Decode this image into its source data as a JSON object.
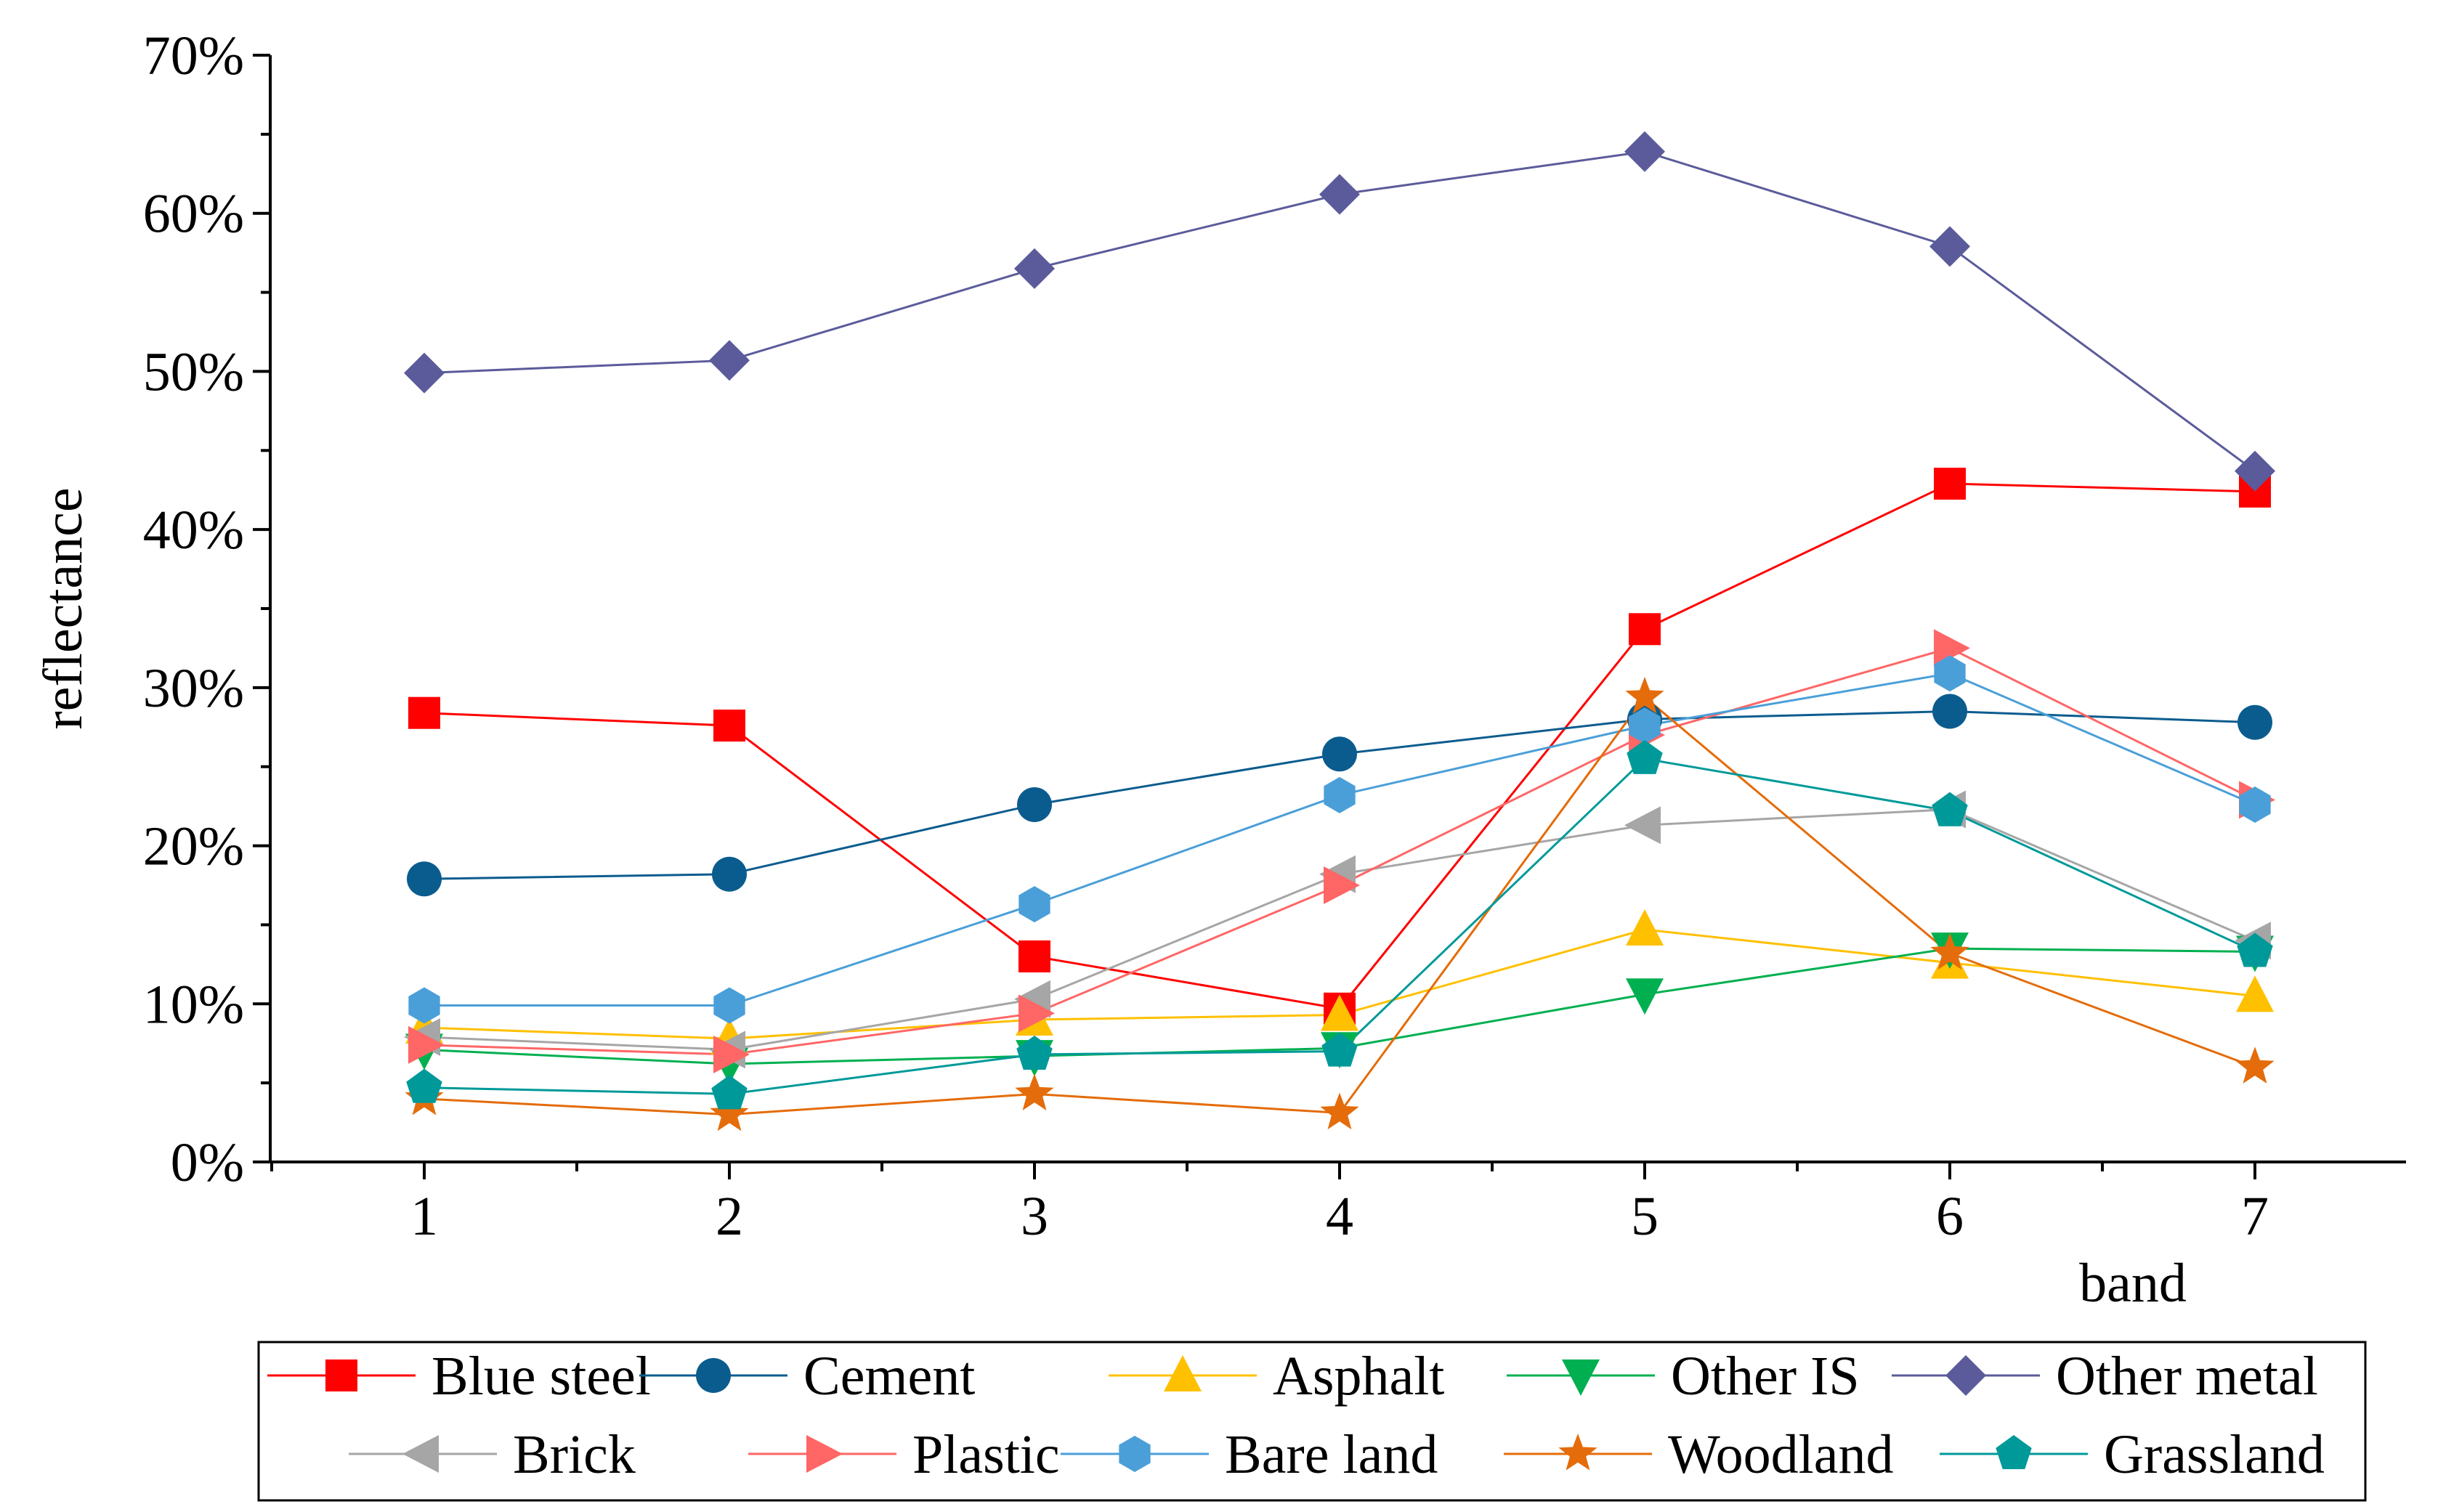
{
  "chart_data": {
    "type": "line",
    "title": "",
    "xlabel": "band",
    "ylabel": "reflectance",
    "x": [
      1,
      2,
      3,
      4,
      5,
      6,
      7
    ],
    "xlim": [
      0.5,
      7.5
    ],
    "ylim": [
      0,
      70
    ],
    "y_ticks": [
      0,
      10,
      20,
      30,
      40,
      50,
      60,
      70
    ],
    "y_tick_labels": [
      "0%",
      "10%",
      "20%",
      "30%",
      "40%",
      "50%",
      "60%",
      "70%"
    ],
    "x_tick_labels": [
      "1",
      "2",
      "3",
      "4",
      "5",
      "6",
      "7"
    ],
    "grid": false,
    "legend_position": "bottom",
    "series": [
      {
        "name": "Blue steel",
        "color": "#ff0000",
        "marker": "square",
        "values": [
          28.4,
          27.6,
          13.0,
          9.7,
          33.7,
          42.9,
          42.4
        ]
      },
      {
        "name": "Cement",
        "color": "#0b5c8e",
        "marker": "circle",
        "values": [
          17.9,
          18.2,
          22.6,
          25.8,
          28.0,
          28.5,
          27.8
        ]
      },
      {
        "name": "Asphalt",
        "color": "#ffc000",
        "marker": "triangle-up",
        "values": [
          8.5,
          7.8,
          9.0,
          9.3,
          14.7,
          12.6,
          10.5
        ]
      },
      {
        "name": "Other IS",
        "color": "#00b050",
        "marker": "triangle-down",
        "values": [
          7.1,
          6.2,
          6.7,
          7.2,
          10.6,
          13.5,
          13.3
        ]
      },
      {
        "name": "Other metal",
        "color": "#5b5b9b",
        "marker": "diamond",
        "values": [
          49.9,
          50.7,
          56.5,
          61.2,
          63.9,
          57.9,
          43.7
        ]
      },
      {
        "name": "Brick",
        "color": "#a6a6a6",
        "marker": "triangle-left",
        "values": [
          7.9,
          7.1,
          10.3,
          18.2,
          21.3,
          22.3,
          14.0
        ]
      },
      {
        "name": "Plastic",
        "color": "#ff6666",
        "marker": "triangle-right",
        "values": [
          7.4,
          6.8,
          9.4,
          17.5,
          27.0,
          32.5,
          22.9
        ]
      },
      {
        "name": "Bare land",
        "color": "#4a9fd8",
        "marker": "hexagon",
        "values": [
          9.9,
          9.9,
          16.3,
          23.2,
          27.6,
          30.9,
          22.6
        ]
      },
      {
        "name": "Woodland",
        "color": "#e46c0a",
        "marker": "star",
        "values": [
          4.0,
          3.0,
          4.3,
          3.1,
          29.4,
          13.2,
          6.0
        ]
      },
      {
        "name": "Grassland",
        "color": "#009999",
        "marker": "pentagon",
        "values": [
          4.7,
          4.3,
          6.8,
          7.0,
          25.5,
          22.2,
          13.3
        ]
      }
    ]
  }
}
